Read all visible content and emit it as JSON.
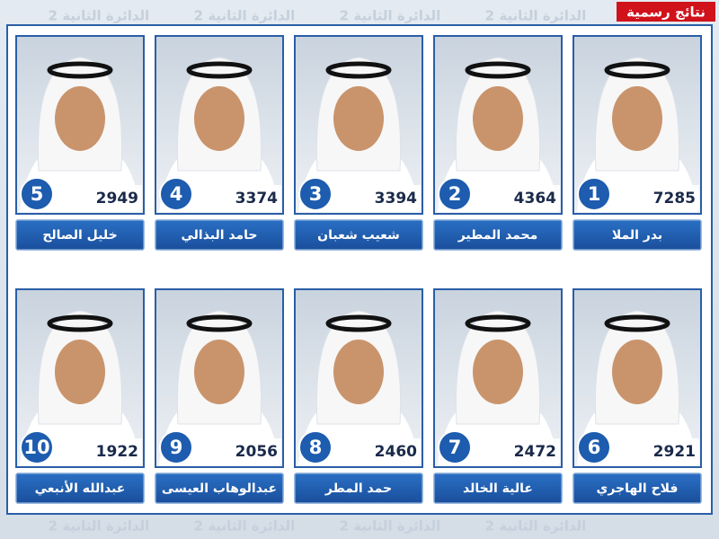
{
  "header": {
    "badge": "نتائج رسمية",
    "watermark": "الدائرة الثانية 2"
  },
  "candidates": [
    {
      "rank": "1",
      "name": "بدر الملا",
      "votes": "7285"
    },
    {
      "rank": "2",
      "name": "محمد المطير",
      "votes": "4364"
    },
    {
      "rank": "3",
      "name": "شعيب شعبان",
      "votes": "3394"
    },
    {
      "rank": "4",
      "name": "حامد البذالي",
      "votes": "3374"
    },
    {
      "rank": "5",
      "name": "خليل الصالح",
      "votes": "2949"
    },
    {
      "rank": "6",
      "name": "فلاح الهاجري",
      "votes": "2921"
    },
    {
      "rank": "7",
      "name": "عالية الخالد",
      "votes": "2472"
    },
    {
      "rank": "8",
      "name": "حمد المطر",
      "votes": "2460"
    },
    {
      "rank": "9",
      "name": "عبدالوهاب العيسى",
      "votes": "2056"
    },
    {
      "rank": "10",
      "name": "عبدالله الأنبعي",
      "votes": "1922"
    }
  ]
}
